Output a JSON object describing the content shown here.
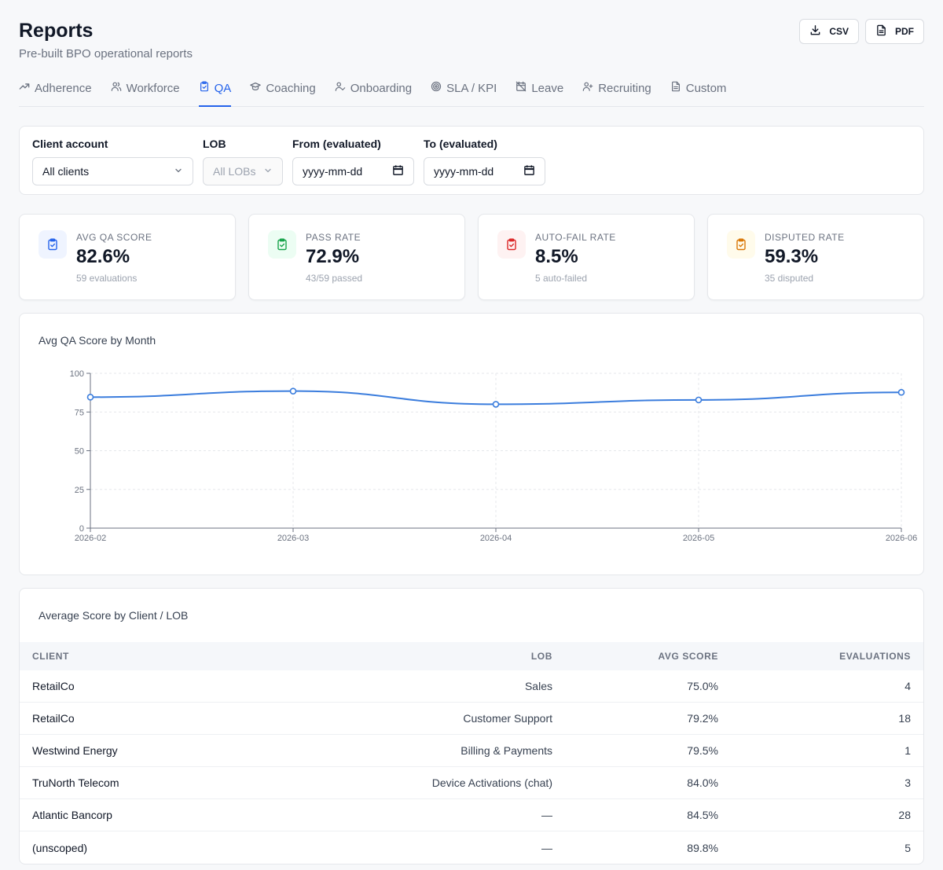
{
  "header": {
    "title": "Reports",
    "subtitle": "Pre-built BPO operational reports",
    "csv_label": "CSV",
    "pdf_label": "PDF"
  },
  "tabs": [
    {
      "label": "Adherence",
      "icon": "trend-icon"
    },
    {
      "label": "Workforce",
      "icon": "users-icon"
    },
    {
      "label": "QA",
      "icon": "clipboard-check-icon",
      "active": true
    },
    {
      "label": "Coaching",
      "icon": "graduation-cap-icon"
    },
    {
      "label": "Onboarding",
      "icon": "user-check-icon"
    },
    {
      "label": "SLA / KPI",
      "icon": "target-icon"
    },
    {
      "label": "Leave",
      "icon": "calendar-off-icon"
    },
    {
      "label": "Recruiting",
      "icon": "user-plus-icon"
    },
    {
      "label": "Custom",
      "icon": "file-icon"
    }
  ],
  "filters": {
    "client_label": "Client account",
    "client_value": "All clients",
    "lob_label": "LOB",
    "lob_value": "All LOBs",
    "from_label": "From (evaluated)",
    "from_value": "yyyy-mm-dd",
    "to_label": "To (evaluated)",
    "to_value": "yyyy-mm-dd"
  },
  "kpis": [
    {
      "label": "AVG QA SCORE",
      "value": "82.6%",
      "sub": "59 evaluations",
      "color": "#2563eb",
      "bg": "#eff4ff"
    },
    {
      "label": "PASS RATE",
      "value": "72.9%",
      "sub": "43/59 passed",
      "color": "#16a34a",
      "bg": "#ecfdf3"
    },
    {
      "label": "AUTO-FAIL RATE",
      "value": "8.5%",
      "sub": "5 auto-failed",
      "color": "#dc2626",
      "bg": "#fef2f2"
    },
    {
      "label": "DISPUTED RATE",
      "value": "59.3%",
      "sub": "35 disputed",
      "color": "#d97706",
      "bg": "#fffbeb"
    }
  ],
  "chart_title": "Avg QA Score by Month",
  "chart_data": {
    "type": "line",
    "x": [
      "2026-02",
      "2026-03",
      "2026-04",
      "2026-05",
      "2026-06"
    ],
    "series": [
      {
        "values": [
          84.6,
          88.5,
          80.0,
          82.8,
          87.7
        ],
        "color": "#3b7ddd"
      }
    ],
    "ylim": [
      0,
      100
    ],
    "yticks": [
      0,
      25,
      50,
      75,
      100
    ],
    "grid": true
  },
  "table": {
    "title": "Average Score by Client / LOB",
    "headers": [
      "CLIENT",
      "LOB",
      "AVG SCORE",
      "EVALUATIONS"
    ],
    "rows": [
      [
        "RetailCo",
        "Sales",
        "75.0%",
        "4"
      ],
      [
        "RetailCo",
        "Customer Support",
        "79.2%",
        "18"
      ],
      [
        "Westwind Energy",
        "Billing & Payments",
        "79.5%",
        "1"
      ],
      [
        "TruNorth Telecom",
        "Device Activations (chat)",
        "84.0%",
        "3"
      ],
      [
        "Atlantic Bancorp",
        "—",
        "84.5%",
        "28"
      ],
      [
        "(unscoped)",
        "—",
        "89.8%",
        "5"
      ]
    ]
  }
}
